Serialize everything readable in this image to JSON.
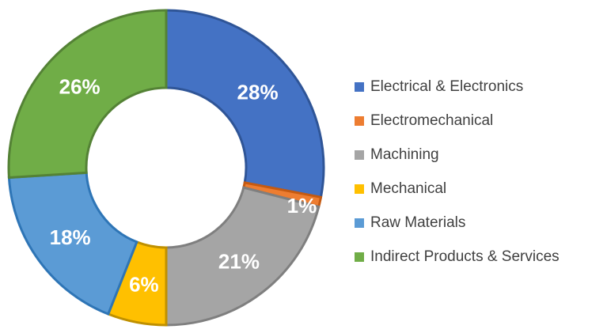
{
  "chart_data": {
    "type": "pie",
    "donut": true,
    "title": "",
    "categories": [
      "Electrical & Electronics",
      "Electromechanical",
      "Machining",
      "Mechanical",
      "Raw Materials",
      "Indirect Products & Services"
    ],
    "values": [
      28,
      1,
      21,
      6,
      18,
      26
    ],
    "labels": [
      "28%",
      "1%",
      "21%",
      "6%",
      "18%",
      "26%"
    ],
    "colors": [
      "#4472C4",
      "#ED7D31",
      "#A5A5A5",
      "#FFC000",
      "#5B9BD5",
      "#70AD47"
    ],
    "border_colors": [
      "#2F5597",
      "#C55A11",
      "#7F7F7F",
      "#BF9000",
      "#2E75B6",
      "#548235"
    ],
    "legend_position": "right"
  }
}
